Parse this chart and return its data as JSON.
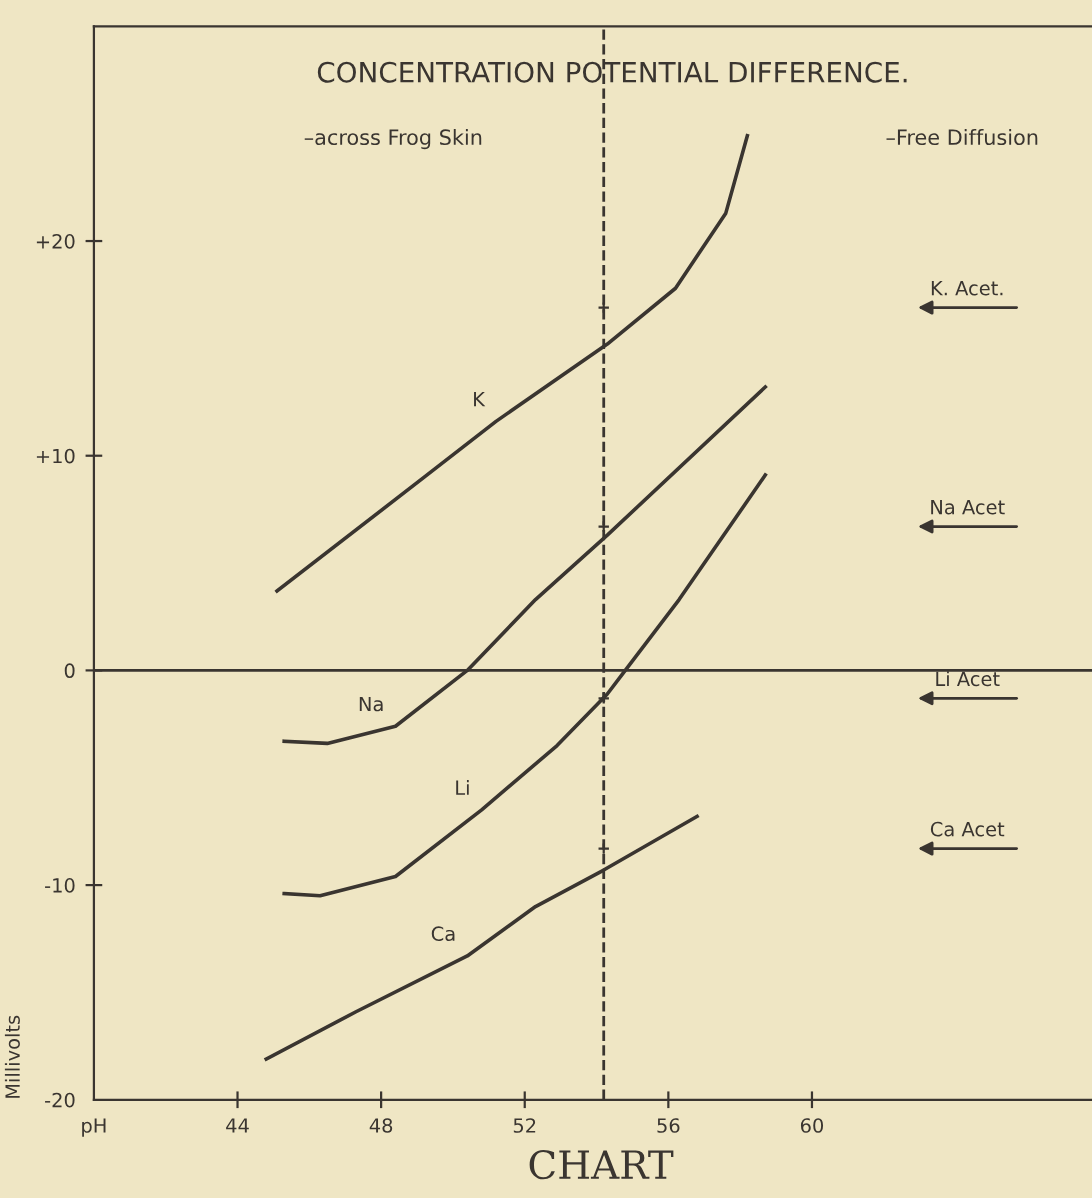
{
  "chart_data": {
    "type": "line",
    "title": "CONCENTRATION POTENTIAL DIFFERENCE.",
    "ylabel": "Millivolts",
    "annotations": [
      "–across Frog Skin",
      "–Free Diffusion",
      "CHART",
      "K. Acet.",
      "Na Acet",
      "Li Acet",
      "Ca Acet"
    ],
    "series": [
      {
        "name": "K",
        "color": "#3a3530",
        "x": [
          45.1,
          49.2,
          51.2,
          54.3,
          56.2,
          57.6,
          58.2
        ],
        "values": [
          3.7,
          9.0,
          11.6,
          15.2,
          17.8,
          21.3,
          24.9
        ]
      },
      {
        "name": "Na",
        "color": "#3a3530",
        "x": [
          45.3,
          46.5,
          48.4,
          50.4,
          52.3,
          54.3,
          58.7
        ],
        "values": [
          -3.3,
          -3.4,
          -2.6,
          0,
          3.3,
          6.3,
          13.2
        ]
      },
      {
        "name": "Li",
        "color": "#3a3530",
        "x": [
          45.3,
          46.3,
          48.4,
          50.8,
          52.9,
          54.3,
          54.8,
          56.3,
          58.7
        ],
        "values": [
          -10.4,
          -10.5,
          -9.6,
          -6.5,
          -3.5,
          -1.1,
          0,
          3.3,
          9.1
        ]
      },
      {
        "name": "Ca",
        "color": "#3a3530",
        "x": [
          44.8,
          47.3,
          50.4,
          52.3,
          54.2,
          56.8
        ],
        "values": [
          -18.1,
          -15.9,
          -13.3,
          -11.0,
          -9.3,
          -6.8
        ]
      },
      {
        "type": "scatter",
        "marker": "cross",
        "color": "#3a3530",
        "x": [
          54.2,
          54.2,
          54.2,
          54.2
        ],
        "values": [
          16.9,
          6.7,
          -1.3,
          -8.3
        ]
      }
    ],
    "ref_lines": [
      {
        "axis": "x",
        "value": 54.2,
        "line_style": "dashed",
        "color": "#3a3530"
      },
      {
        "axis": "y",
        "value": 0,
        "line_style": "solid",
        "color": "#3a3530"
      }
    ],
    "xlim": [
      40,
      67.8
    ],
    "ylim": [
      -20,
      30
    ],
    "xticks": [
      {
        "value": 40,
        "label": "pH"
      },
      44,
      48,
      52,
      56,
      60
    ],
    "yticks": [
      {
        "value": 20,
        "label": "+20"
      },
      {
        "value": 10,
        "label": "+10"
      },
      0,
      {
        "value": -10,
        "label": "-10"
      },
      {
        "value": -20,
        "label": "-20"
      }
    ],
    "line_style": "solid",
    "marker": "none",
    "grid": false,
    "legend": false
  }
}
